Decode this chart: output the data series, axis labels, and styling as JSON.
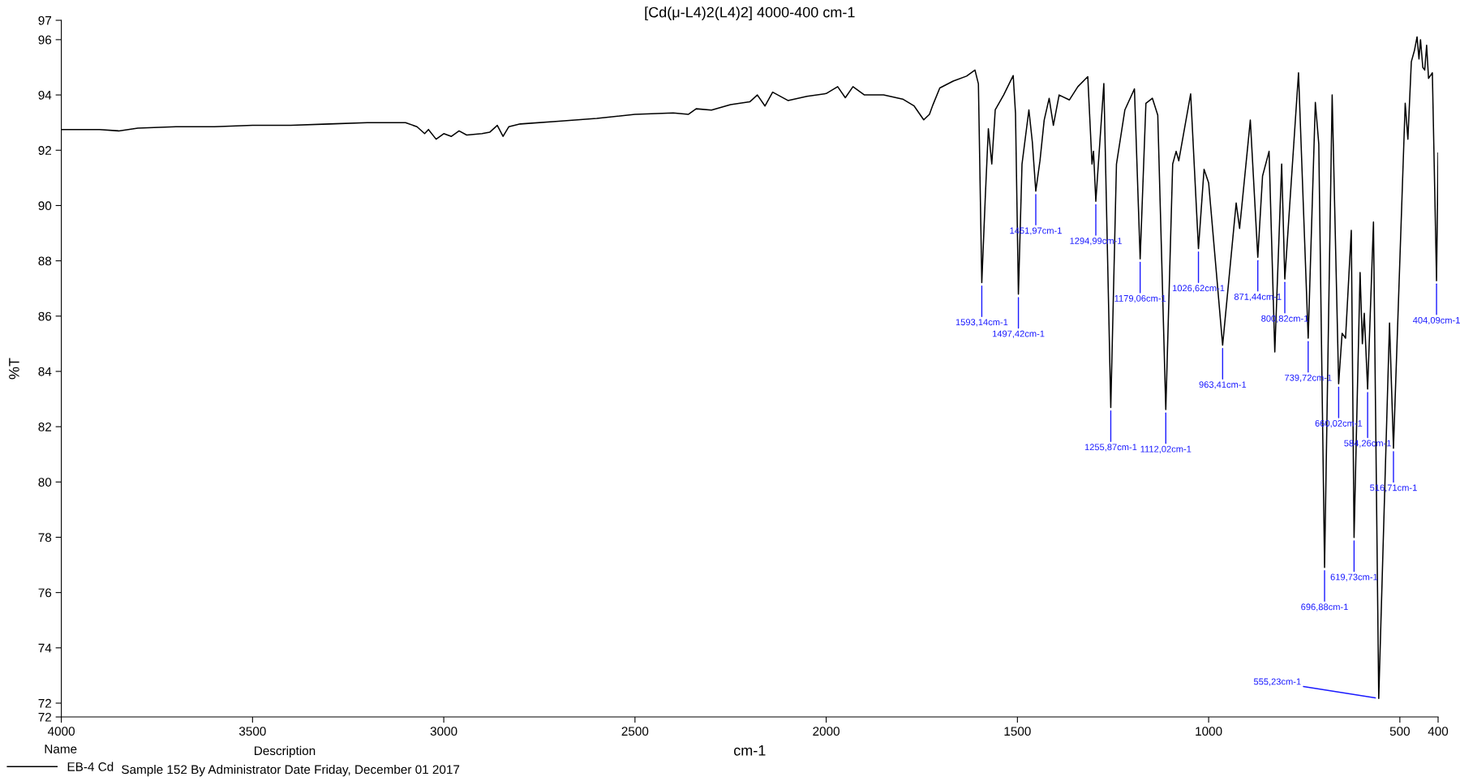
{
  "chart_data": {
    "type": "line",
    "title": "[Cd(μ-L4)2(L4)2] 4000-400 cm-1",
    "xlabel": "cm-1",
    "ylabel": "%T",
    "xlim": [
      4000,
      400
    ],
    "xticks": [
      4000,
      3500,
      3000,
      2500,
      2000,
      1500,
      1000,
      500,
      400
    ],
    "ylim": [
      71.5,
      96.7
    ],
    "yticks": [
      {
        "value": 71.5,
        "label": "72"
      },
      72,
      74,
      76,
      78,
      80,
      82,
      84,
      86,
      88,
      90,
      92,
      94,
      96,
      {
        "value": 96.7,
        "label": "97"
      }
    ],
    "grid": false,
    "legend": "bottom",
    "legend_title": "Name",
    "marker": "none",
    "line_style": "solid",
    "series": [
      {
        "name": "EB-4 Cd",
        "color": "#000000",
        "x": [
          4000,
          3900,
          3850,
          3800,
          3700,
          3600,
          3500,
          3400,
          3300,
          3200,
          3100,
          3070,
          3050,
          3040,
          3020,
          3000,
          2980,
          2960,
          2940,
          2900,
          2880,
          2860,
          2845,
          2830,
          2800,
          2700,
          2600,
          2500,
          2400,
          2360,
          2340,
          2300,
          2250,
          2200,
          2180,
          2160,
          2140,
          2100,
          2050,
          2000,
          1970,
          1950,
          1930,
          1900,
          1850,
          1800,
          1770,
          1745,
          1730,
          1721,
          1703,
          1668,
          1633,
          1611,
          1602,
          1593.14,
          1584,
          1576,
          1567,
          1558,
          1536,
          1511,
          1505,
          1497.42,
          1488,
          1470,
          1461,
          1451.97,
          1441,
          1430,
          1417,
          1406,
          1391,
          1364,
          1342,
          1316,
          1305,
          1301,
          1294.99,
          1274,
          1255.87,
          1241,
          1219,
          1194,
          1179.06,
          1164,
          1147,
          1133,
          1112.02,
          1094,
          1085,
          1078,
          1047,
          1026.62,
          1012,
          1000,
          963.41,
          928,
          919,
          891,
          871.44,
          859,
          842,
          827,
          809,
          800.82,
          765,
          739.72,
          721,
          712,
          696.88,
          677,
          660.02,
          651,
          642,
          627,
          619.73,
          604,
          598,
          593,
          584.26,
          569,
          555.23,
          527,
          516.71,
          486,
          479,
          470,
          462,
          455,
          450,
          446,
          440,
          435,
          430,
          425,
          415,
          404.09,
          400
        ],
        "values": [
          92.75,
          92.75,
          92.7,
          92.8,
          92.85,
          92.85,
          92.9,
          92.9,
          92.95,
          93.0,
          93.0,
          92.85,
          92.6,
          92.75,
          92.4,
          92.6,
          92.5,
          92.7,
          92.55,
          92.6,
          92.65,
          92.9,
          92.5,
          92.85,
          92.95,
          93.05,
          93.15,
          93.3,
          93.35,
          93.3,
          93.5,
          93.45,
          93.65,
          93.75,
          94.0,
          93.6,
          94.1,
          93.8,
          93.95,
          94.05,
          94.3,
          93.9,
          94.3,
          94.0,
          94.0,
          93.85,
          93.6,
          93.1,
          93.3,
          93.64,
          94.25,
          94.5,
          94.68,
          94.9,
          94.4,
          87.21,
          90.3,
          92.78,
          91.5,
          93.46,
          94.0,
          94.7,
          93.33,
          86.79,
          91.5,
          93.46,
          92.3,
          90.52,
          91.62,
          93.09,
          93.88,
          92.9,
          94.0,
          93.82,
          94.3,
          94.66,
          91.5,
          91.96,
          90.15,
          94.41,
          82.69,
          91.5,
          93.46,
          94.22,
          88.07,
          93.7,
          93.88,
          93.27,
          82.62,
          91.5,
          91.96,
          91.62,
          94.04,
          88.44,
          91.31,
          90.82,
          84.95,
          90.09,
          89.17,
          93.09,
          88.13,
          91.07,
          91.96,
          84.7,
          91.5,
          87.34,
          94.8,
          85.2,
          93.73,
          92.23,
          76.91,
          94.0,
          83.55,
          85.38,
          85.2,
          89.1,
          77.99,
          87.58,
          85.0,
          86.1,
          83.36,
          89.4,
          72.17,
          85.75,
          81.22,
          93.7,
          92.4,
          95.2,
          95.6,
          96.1,
          95.3,
          96.0,
          95.0,
          94.9,
          95.8,
          94.6,
          94.8,
          87.28,
          91.9
        ]
      }
    ],
    "annotations": [
      {
        "text": "1593,14cm-1",
        "x": 1593.14,
        "y": 87.21
      },
      {
        "text": "1497,42cm-1",
        "x": 1497.42,
        "y": 86.79
      },
      {
        "text": "1451,97cm-1",
        "x": 1451.97,
        "y": 90.52
      },
      {
        "text": "1294,99cm-1",
        "x": 1294.99,
        "y": 90.15
      },
      {
        "text": "1255,87cm-1",
        "x": 1255.87,
        "y": 82.69
      },
      {
        "text": "1179,06cm-1",
        "x": 1179.06,
        "y": 88.07
      },
      {
        "text": "1112,02cm-1",
        "x": 1112.02,
        "y": 82.62
      },
      {
        "text": "1026,62cm-1",
        "x": 1026.62,
        "y": 88.44
      },
      {
        "text": "963,41cm-1",
        "x": 963.41,
        "y": 84.95
      },
      {
        "text": "871,44cm-1",
        "x": 871.44,
        "y": 88.13
      },
      {
        "text": "800,82cm-1",
        "x": 800.82,
        "y": 87.34
      },
      {
        "text": "739,72cm-1",
        "x": 739.72,
        "y": 85.2
      },
      {
        "text": "696,88cm-1",
        "x": 696.88,
        "y": 76.91
      },
      {
        "text": "660,02cm-1",
        "x": 660.02,
        "y": 83.55
      },
      {
        "text": "619,73cm-1",
        "x": 619.73,
        "y": 77.99
      },
      {
        "text": "584,26cm-1",
        "x": 584.26,
        "y": 83.36
      },
      {
        "text": "555,23cm-1",
        "x": 555.23,
        "y": 72.17
      },
      {
        "text": "516,71cm-1",
        "x": 516.71,
        "y": 81.22
      },
      {
        "text": "404,09cm-1",
        "x": 404.09,
        "y": 87.28
      },
      "Description",
      "Sample 152 By Administrator Date Friday, December 01 2017"
    ]
  }
}
